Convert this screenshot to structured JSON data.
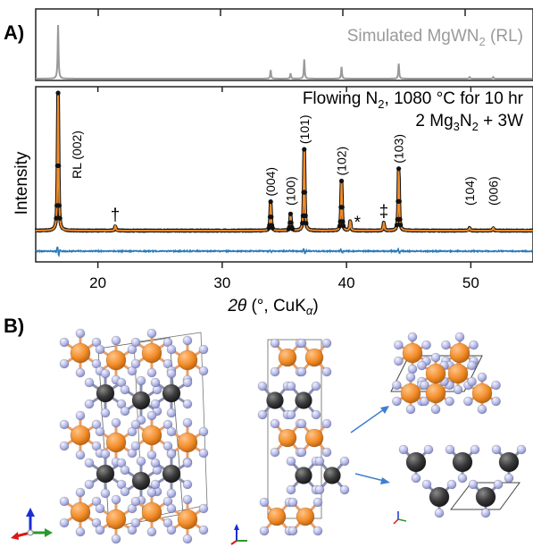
{
  "panel_a": {
    "label": "A)",
    "sim_label_main": "Simulated MgWN",
    "sim_label_sub": "2",
    "sim_label_tail": " (RL)",
    "cond_line1_main": "Flowing N",
    "cond_line1_sub": "2",
    "cond_line1_tail": ", 1080 °C for 10 hr",
    "cond_line2_a": "2 Mg",
    "cond_line2_sub1": "3",
    "cond_line2_b": "N",
    "cond_line2_sub2": "2",
    "cond_line2_c": " + 3W",
    "ylabel": "Intensity",
    "xlabel_theta": "2θ",
    "xlabel_rest": " (°, CuK",
    "xlabel_alpha": "α",
    "xlabel_close": ")",
    "colors": {
      "observed": "#111111",
      "fit": "#f28c28",
      "difference": "#2b7bb9",
      "simulated": "#9a9a9a"
    }
  },
  "panel_b": {
    "label": "B)"
  },
  "chart_data": {
    "type": "line",
    "xlabel": "2θ (°, CuKα)",
    "ylabel": "Intensity",
    "xlim": [
      15,
      55
    ],
    "x_ticks": [
      "20",
      "30",
      "40",
      "50"
    ],
    "top_subplot_title": "Simulated MgWN2 (RL)",
    "annotation": "Flowing N2, 1080 °C for 10 hr / 2 Mg3N2 + 3W",
    "simulated_peaks": [
      {
        "x": 16.8,
        "rel": 1.0
      },
      {
        "x": 33.9,
        "rel": 0.16
      },
      {
        "x": 35.5,
        "rel": 0.1
      },
      {
        "x": 36.6,
        "rel": 0.36
      },
      {
        "x": 39.6,
        "rel": 0.22
      },
      {
        "x": 44.2,
        "rel": 0.28
      },
      {
        "x": 49.9,
        "rel": 0.03
      },
      {
        "x": 51.8,
        "rel": 0.03
      }
    ],
    "observed_peaks": [
      {
        "x": 16.8,
        "rel": 1.0,
        "label": "RL (002)"
      },
      {
        "x": 21.4,
        "rel": 0.035,
        "label": "†"
      },
      {
        "x": 33.9,
        "rel": 0.21,
        "label": "(004)"
      },
      {
        "x": 35.5,
        "rel": 0.12,
        "label": "(100)"
      },
      {
        "x": 36.6,
        "rel": 0.59,
        "label": "(101)"
      },
      {
        "x": 39.6,
        "rel": 0.36,
        "label": "(102)"
      },
      {
        "x": 40.3,
        "rel": 0.07,
        "label": "*"
      },
      {
        "x": 43.0,
        "rel": 0.06,
        "label": "‡"
      },
      {
        "x": 44.2,
        "rel": 0.45,
        "label": "(103)"
      },
      {
        "x": 49.9,
        "rel": 0.02,
        "label": "(104)"
      },
      {
        "x": 51.8,
        "rel": 0.02,
        "label": "(006)"
      }
    ]
  }
}
